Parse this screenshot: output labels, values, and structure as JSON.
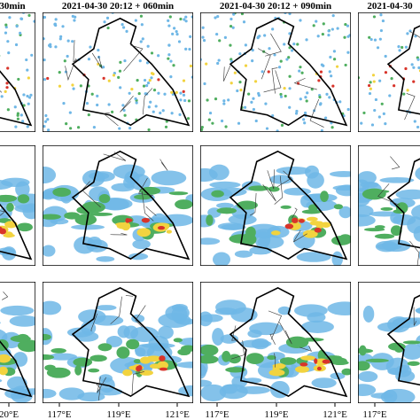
{
  "panels": {
    "titles": [
      "30min",
      "2021-04-30 20:12 + 060min",
      "2021-04-30 20:12 + 090min",
      "2021-04-30"
    ],
    "x_axis_labels": [
      [
        "20°E"
      ],
      [
        "117°E",
        "119°E",
        "121°E"
      ],
      [
        "117°E",
        "119°E",
        "121°E"
      ],
      [
        "117°E"
      ]
    ]
  }
}
